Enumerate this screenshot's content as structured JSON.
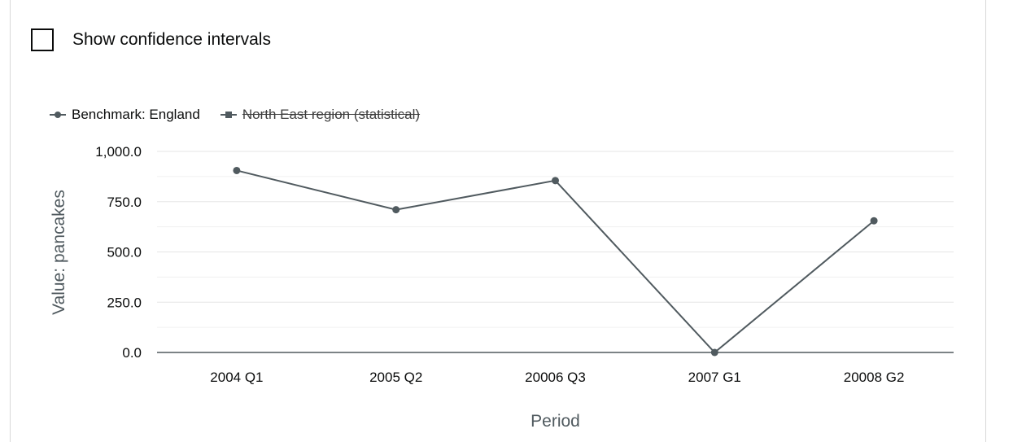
{
  "controls": {
    "confidence_label": "Show confidence intervals",
    "confidence_checked": false
  },
  "legend": {
    "items": [
      {
        "label": "Benchmark: England",
        "marker": "circle",
        "hidden": false
      },
      {
        "label": "North East region (statistical)",
        "marker": "square",
        "hidden": true
      }
    ]
  },
  "colors": {
    "series_line": "#505a5f",
    "marker_fill": "#505a5f",
    "grid": "#e6e6e6",
    "axis": "#505a5f"
  },
  "chart_data": {
    "type": "line",
    "xlabel": "Period",
    "ylabel": "Value: pancakes",
    "categories": [
      "2004 Q1",
      "2005 Q2",
      "20006 Q3",
      "2007 G1",
      "20008 G2"
    ],
    "ylim": [
      0,
      1000
    ],
    "yticks": [
      0,
      250,
      500,
      750,
      1000
    ],
    "ytick_labels": [
      "0.0",
      "250.0",
      "500.0",
      "750.0",
      "1,000.0"
    ],
    "grid": true,
    "legend_position": "top-left",
    "series": [
      {
        "name": "Benchmark: England",
        "values": [
          905,
          710,
          855,
          0,
          655
        ],
        "visible": true
      }
    ]
  }
}
